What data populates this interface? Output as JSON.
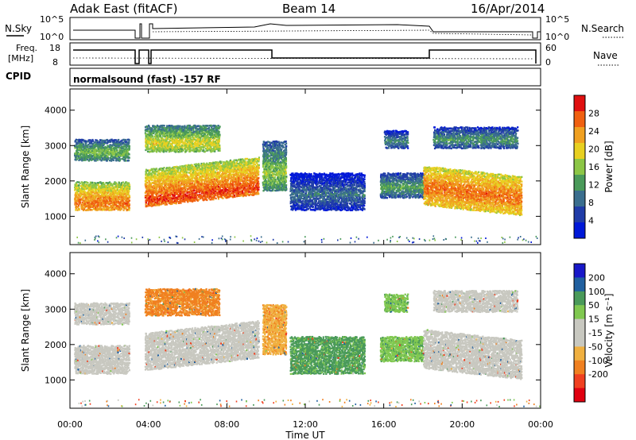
{
  "header": {
    "title": "Adak East (fitACF)",
    "beam": "Beam 14",
    "date": "16/Apr/2014",
    "cpid_label": "CPID",
    "cpid_value": "normalsound (fast) -157 RF"
  },
  "top_panels": {
    "nsky": {
      "left_label": "N.Sky",
      "left_ticks": [
        "10^5",
        "10^0"
      ],
      "right_label": "N.Search",
      "right_ticks": [
        "10^5",
        "10^0"
      ]
    },
    "freq": {
      "left_label_line1": "Freq.",
      "left_label_line2": "[MHz]",
      "left_ticks": [
        "18",
        "8"
      ],
      "right_label": "Nave",
      "right_ticks": [
        "60",
        "0"
      ]
    }
  },
  "colors": {
    "power_scale": [
      "#0018d8",
      "#203ca8",
      "#3a6e8e",
      "#4a9a5a",
      "#8cc646",
      "#e8d020",
      "#f0a020",
      "#f06010",
      "#e01010"
    ],
    "velocity_scale": [
      "#e00010",
      "#f04020",
      "#f08020",
      "#f0b040",
      "#c8c8c0",
      "#c8c8c0",
      "#80c850",
      "#4a9a5a",
      "#2060a0",
      "#1818c8"
    ]
  },
  "chart_data": [
    {
      "type": "heatmap",
      "name": "power",
      "ylabel": "Slant Range [km]",
      "yticks": [
        "1000",
        "2000",
        "3000",
        "4000"
      ],
      "ylim": [
        200,
        4600
      ],
      "xlim": [
        0,
        24
      ],
      "colorbar_label": "Power [dB]",
      "colorbar_ticks": [
        "4",
        "8",
        "12",
        "16",
        "20",
        "24",
        "28"
      ],
      "colorbar_range": [
        0,
        32
      ],
      "bands": [
        {
          "t0": 0.2,
          "t1": 3.0,
          "r0": 1150,
          "r1": 1950,
          "core": 1350,
          "level": 22
        },
        {
          "t0": 0.2,
          "t1": 3.0,
          "r0": 2550,
          "r1": 3150,
          "core": 2800,
          "level": 11
        },
        {
          "t0": 3.8,
          "t1": 9.6,
          "r0": 1250,
          "r1": 2300,
          "core": 1450,
          "level": 24
        },
        {
          "t0": 3.8,
          "t1": 7.6,
          "r0": 2800,
          "r1": 3550,
          "core": 3050,
          "level": 15
        },
        {
          "t0": 9.8,
          "t1": 11.0,
          "r0": 1700,
          "r1": 3100,
          "core": 2200,
          "level": 12
        },
        {
          "t0": 11.2,
          "t1": 15.0,
          "r0": 1150,
          "r1": 2200,
          "core": 1600,
          "level": 5
        },
        {
          "t0": 15.8,
          "t1": 18.0,
          "r0": 1500,
          "r1": 2200,
          "core": 1800,
          "level": 9
        },
        {
          "t0": 16.0,
          "t1": 17.2,
          "r0": 2900,
          "r1": 3400,
          "core": 3100,
          "level": 7
        },
        {
          "t0": 18.0,
          "t1": 23.0,
          "r0": 1300,
          "r1": 2400,
          "core": 1800,
          "level": 22
        },
        {
          "t0": 18.5,
          "t1": 22.8,
          "r0": 2900,
          "r1": 3500,
          "core": 3150,
          "level": 8
        }
      ]
    },
    {
      "type": "heatmap",
      "name": "velocity",
      "ylabel": "Slant Range [km]",
      "yticks": [
        "1000",
        "2000",
        "3000",
        "4000"
      ],
      "ylim": [
        200,
        4600
      ],
      "xlim": [
        0,
        24
      ],
      "xlabel": "Time UT",
      "xticks": [
        "00:00",
        "04:00",
        "08:00",
        "12:00",
        "16:00",
        "20:00",
        "00:00"
      ],
      "colorbar_label": "Velocity [m s⁻¹]",
      "colorbar_ticks": [
        "-200",
        "-100",
        "-50",
        "-15",
        "15",
        "50",
        "100",
        "200"
      ],
      "bands": [
        {
          "t0": 0.2,
          "t1": 3.0,
          "r0": 1150,
          "r1": 1950,
          "core": 1350,
          "level": 0
        },
        {
          "t0": 0.2,
          "t1": 3.0,
          "r0": 2550,
          "r1": 3150,
          "core": 2800,
          "level": 0
        },
        {
          "t0": 3.8,
          "t1": 9.6,
          "r0": 1250,
          "r1": 2300,
          "core": 1450,
          "level": 0
        },
        {
          "t0": 3.8,
          "t1": 7.6,
          "r0": 2800,
          "r1": 3550,
          "core": 3050,
          "level": -60
        },
        {
          "t0": 9.8,
          "t1": 11.0,
          "r0": 1700,
          "r1": 3100,
          "core": 2200,
          "level": -40
        },
        {
          "t0": 11.2,
          "t1": 15.0,
          "r0": 1150,
          "r1": 2200,
          "core": 1600,
          "level": 60
        },
        {
          "t0": 15.8,
          "t1": 18.0,
          "r0": 1500,
          "r1": 2200,
          "core": 1800,
          "level": 40
        },
        {
          "t0": 16.0,
          "t1": 17.2,
          "r0": 2900,
          "r1": 3400,
          "core": 3100,
          "level": 40
        },
        {
          "t0": 18.0,
          "t1": 23.0,
          "r0": 1300,
          "r1": 2400,
          "core": 1800,
          "level": 0
        },
        {
          "t0": 18.5,
          "t1": 22.8,
          "r0": 2900,
          "r1": 3500,
          "core": 3150,
          "level": 0
        }
      ]
    }
  ]
}
